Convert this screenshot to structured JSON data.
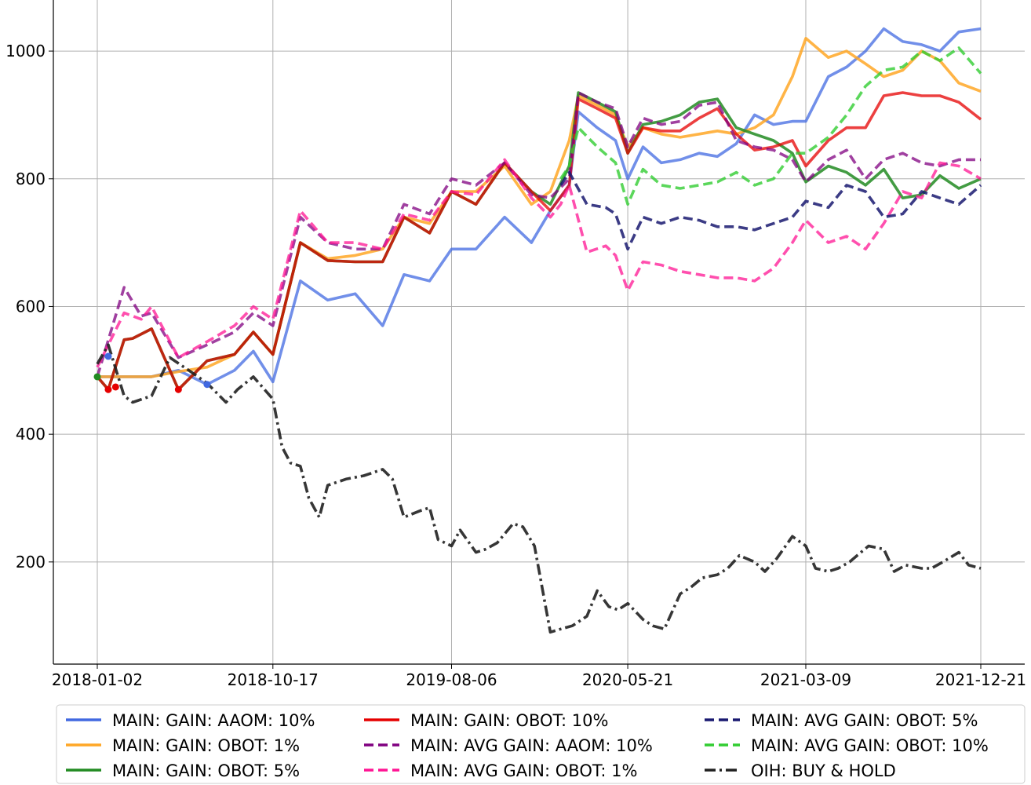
{
  "chart_data": {
    "type": "line",
    "title": "",
    "xlabel": "",
    "ylabel": "",
    "ylim": [
      40,
      1080
    ],
    "yticks": [
      200,
      400,
      600,
      800,
      1000
    ],
    "xticks": [
      "2018-01-02",
      "2018-10-17",
      "2019-08-06",
      "2020-05-21",
      "2021-03-09",
      "2021-12-21"
    ],
    "grid": true,
    "legend_placement": "bottom",
    "series": [
      {
        "name": "MAIN: GAIN: AAOM: 10%",
        "color": "#4169E1",
        "style": "solid",
        "opacity": 0.75,
        "x": [
          "2018-01-02",
          "2018-04-01",
          "2018-05-15",
          "2018-07-01",
          "2018-08-15",
          "2018-09-15",
          "2018-10-17",
          "2018-12-01",
          "2019-01-15",
          "2019-03-01",
          "2019-04-15",
          "2019-05-20",
          "2019-07-01",
          "2019-08-06",
          "2019-09-15",
          "2019-11-01",
          "2019-12-15",
          "2020-01-15",
          "2020-02-15",
          "2020-03-01",
          "2020-04-01",
          "2020-05-01",
          "2020-05-21",
          "2020-06-15",
          "2020-07-15",
          "2020-08-15",
          "2020-09-15",
          "2020-10-15",
          "2020-11-15",
          "2020-12-15",
          "2021-01-15",
          "2021-02-15",
          "2021-03-09",
          "2021-04-15",
          "2021-05-15",
          "2021-06-15",
          "2021-07-15",
          "2021-08-15",
          "2021-09-15",
          "2021-10-15",
          "2021-11-15",
          "2021-12-21"
        ],
        "values": [
          490,
          490,
          500,
          478,
          500,
          530,
          482,
          640,
          610,
          620,
          570,
          650,
          640,
          690,
          690,
          740,
          700,
          750,
          790,
          905,
          880,
          860,
          800,
          850,
          825,
          830,
          840,
          835,
          855,
          900,
          885,
          890,
          890,
          960,
          975,
          1000,
          1035,
          1015,
          1010,
          1000,
          1030,
          1035
        ]
      },
      {
        "name": "MAIN: GAIN: OBOT: 1%",
        "color": "#FFA726",
        "style": "solid",
        "opacity": 0.85,
        "x": [
          "2018-01-02",
          "2018-04-01",
          "2018-05-15",
          "2018-07-01",
          "2018-08-15",
          "2018-09-15",
          "2018-10-17",
          "2018-12-01",
          "2019-01-15",
          "2019-03-01",
          "2019-04-15",
          "2019-05-20",
          "2019-07-01",
          "2019-08-06",
          "2019-09-15",
          "2019-11-01",
          "2019-12-15",
          "2020-01-15",
          "2020-02-15",
          "2020-03-01",
          "2020-04-01",
          "2020-05-01",
          "2020-05-21",
          "2020-06-15",
          "2020-07-15",
          "2020-08-15",
          "2020-09-15",
          "2020-10-15",
          "2020-11-15",
          "2020-12-15",
          "2021-01-15",
          "2021-02-15",
          "2021-03-09",
          "2021-04-15",
          "2021-05-15",
          "2021-06-15",
          "2021-07-15",
          "2021-08-15",
          "2021-09-15",
          "2021-10-15",
          "2021-11-15",
          "2021-12-21"
        ],
        "values": [
          490,
          490,
          498,
          505,
          525,
          560,
          525,
          700,
          675,
          680,
          690,
          740,
          730,
          780,
          780,
          820,
          760,
          780,
          860,
          930,
          915,
          900,
          850,
          880,
          870,
          865,
          870,
          875,
          870,
          880,
          900,
          960,
          1020,
          990,
          1000,
          980,
          960,
          970,
          1000,
          985,
          950,
          937
        ]
      },
      {
        "name": "MAIN: GAIN: OBOT: 5%",
        "color": "#228B22",
        "style": "solid",
        "opacity": 0.85,
        "x": [
          "2018-01-02",
          "2018-01-20",
          "2018-02-15",
          "2018-03-01",
          "2018-04-01",
          "2018-05-15",
          "2018-07-01",
          "2018-08-15",
          "2018-09-15",
          "2018-10-17",
          "2018-12-01",
          "2019-01-15",
          "2019-03-01",
          "2019-04-15",
          "2019-05-20",
          "2019-07-01",
          "2019-08-06",
          "2019-09-15",
          "2019-11-01",
          "2019-12-15",
          "2020-01-15",
          "2020-02-15",
          "2020-03-01",
          "2020-04-01",
          "2020-05-01",
          "2020-05-21",
          "2020-06-15",
          "2020-07-15",
          "2020-08-15",
          "2020-09-15",
          "2020-10-15",
          "2020-11-15",
          "2020-12-15",
          "2021-01-15",
          "2021-02-15",
          "2021-03-09",
          "2021-04-15",
          "2021-05-15",
          "2021-06-15",
          "2021-07-15",
          "2021-08-15",
          "2021-09-15",
          "2021-10-15",
          "2021-11-15",
          "2021-12-21"
        ],
        "values": [
          490,
          470,
          548,
          550,
          565,
          470,
          515,
          525,
          560,
          525,
          700,
          672,
          670,
          670,
          740,
          715,
          780,
          760,
          825,
          780,
          760,
          820,
          935,
          920,
          905,
          840,
          885,
          890,
          900,
          920,
          925,
          880,
          870,
          860,
          840,
          795,
          820,
          810,
          790,
          815,
          770,
          775,
          805,
          785,
          800
        ]
      },
      {
        "name": "MAIN: GAIN: OBOT: 10%",
        "color": "#E50000",
        "style": "solid",
        "opacity": 0.75,
        "x": [
          "2018-01-02",
          "2018-01-20",
          "2018-02-15",
          "2018-03-01",
          "2018-04-01",
          "2018-05-15",
          "2018-07-01",
          "2018-08-15",
          "2018-09-15",
          "2018-10-17",
          "2018-12-01",
          "2019-01-15",
          "2019-03-01",
          "2019-04-15",
          "2019-05-20",
          "2019-07-01",
          "2019-08-06",
          "2019-09-15",
          "2019-11-01",
          "2019-12-15",
          "2020-01-15",
          "2020-02-15",
          "2020-03-01",
          "2020-04-01",
          "2020-05-01",
          "2020-05-21",
          "2020-06-15",
          "2020-07-15",
          "2020-08-15",
          "2020-09-15",
          "2020-10-15",
          "2020-11-15",
          "2020-12-15",
          "2021-01-15",
          "2021-02-15",
          "2021-03-09",
          "2021-04-15",
          "2021-05-15",
          "2021-06-15",
          "2021-07-15",
          "2021-08-15",
          "2021-09-15",
          "2021-10-15",
          "2021-11-15",
          "2021-12-21"
        ],
        "values": [
          490,
          470,
          548,
          550,
          565,
          470,
          515,
          525,
          560,
          525,
          700,
          672,
          670,
          670,
          740,
          715,
          780,
          760,
          825,
          780,
          750,
          790,
          925,
          910,
          895,
          840,
          880,
          875,
          875,
          895,
          910,
          870,
          845,
          850,
          860,
          820,
          860,
          880,
          880,
          930,
          935,
          930,
          930,
          920,
          893
        ]
      },
      {
        "name": "MAIN: AVG GAIN: AAOM: 10%",
        "color": "#800080",
        "style": "dashed",
        "opacity": 0.75,
        "x": [
          "2018-01-02",
          "2018-02-15",
          "2018-03-15",
          "2018-04-01",
          "2018-05-15",
          "2018-07-01",
          "2018-08-15",
          "2018-09-15",
          "2018-10-17",
          "2018-12-01",
          "2019-01-15",
          "2019-03-01",
          "2019-04-15",
          "2019-05-20",
          "2019-07-01",
          "2019-08-06",
          "2019-09-15",
          "2019-11-01",
          "2019-12-15",
          "2020-01-15",
          "2020-02-15",
          "2020-03-01",
          "2020-04-01",
          "2020-05-01",
          "2020-05-21",
          "2020-06-15",
          "2020-07-15",
          "2020-08-15",
          "2020-09-15",
          "2020-10-15",
          "2020-11-15",
          "2020-12-15",
          "2021-01-15",
          "2021-02-15",
          "2021-03-09",
          "2021-04-15",
          "2021-05-15",
          "2021-06-15",
          "2021-07-15",
          "2021-08-15",
          "2021-09-15",
          "2021-10-15",
          "2021-11-15",
          "2021-12-21"
        ],
        "values": [
          490,
          630,
          585,
          590,
          520,
          540,
          560,
          590,
          570,
          740,
          700,
          690,
          690,
          760,
          745,
          800,
          790,
          825,
          775,
          770,
          800,
          935,
          920,
          910,
          850,
          895,
          885,
          890,
          915,
          920,
          860,
          850,
          845,
          830,
          795,
          830,
          845,
          800,
          830,
          840,
          825,
          820,
          830,
          830
        ]
      },
      {
        "name": "MAIN: AVG GAIN: OBOT: 1%",
        "color": "#FF1493",
        "style": "dashed",
        "opacity": 0.75,
        "x": [
          "2018-01-02",
          "2018-02-15",
          "2018-03-15",
          "2018-04-01",
          "2018-05-15",
          "2018-07-01",
          "2018-08-15",
          "2018-09-15",
          "2018-10-17",
          "2018-12-01",
          "2019-01-15",
          "2019-03-01",
          "2019-04-15",
          "2019-05-20",
          "2019-07-01",
          "2019-08-06",
          "2019-09-15",
          "2019-11-01",
          "2019-12-15",
          "2020-01-15",
          "2020-02-01",
          "2020-02-15",
          "2020-03-15",
          "2020-04-15",
          "2020-05-01",
          "2020-05-21",
          "2020-06-15",
          "2020-07-15",
          "2020-08-15",
          "2020-09-15",
          "2020-10-15",
          "2020-11-15",
          "2020-12-15",
          "2021-01-15",
          "2021-02-15",
          "2021-03-09",
          "2021-04-15",
          "2021-05-15",
          "2021-06-15",
          "2021-07-15",
          "2021-08-15",
          "2021-09-15",
          "2021-10-15",
          "2021-11-15",
          "2021-12-21"
        ],
        "values": [
          505,
          590,
          580,
          600,
          520,
          545,
          570,
          600,
          580,
          750,
          700,
          700,
          690,
          745,
          735,
          780,
          775,
          830,
          770,
          740,
          760,
          790,
          685,
          695,
          680,
          625,
          670,
          665,
          655,
          650,
          645,
          645,
          640,
          660,
          700,
          735,
          700,
          710,
          690,
          730,
          780,
          770,
          825,
          820,
          800
        ]
      },
      {
        "name": "MAIN: AVG GAIN: OBOT: 5%",
        "color": "#191970",
        "style": "dashed",
        "opacity": 0.85,
        "x": [
          "2020-02-01",
          "2020-02-15",
          "2020-03-15",
          "2020-04-15",
          "2020-05-01",
          "2020-05-21",
          "2020-06-15",
          "2020-07-15",
          "2020-08-15",
          "2020-09-15",
          "2020-10-15",
          "2020-11-15",
          "2020-12-15",
          "2021-01-15",
          "2021-02-15",
          "2021-03-09",
          "2021-04-15",
          "2021-05-15",
          "2021-06-15",
          "2021-07-15",
          "2021-08-15",
          "2021-09-15",
          "2021-10-15",
          "2021-11-15",
          "2021-12-21"
        ],
        "values": [
          790,
          810,
          760,
          755,
          745,
          690,
          740,
          730,
          740,
          735,
          725,
          725,
          720,
          730,
          740,
          765,
          755,
          790,
          780,
          740,
          745,
          780,
          770,
          760,
          790
        ]
      },
      {
        "name": "MAIN: AVG GAIN: OBOT: 10%",
        "color": "#32CD32",
        "style": "dashed",
        "opacity": 0.8,
        "x": [
          "2020-02-01",
          "2020-02-15",
          "2020-03-01",
          "2020-04-01",
          "2020-05-01",
          "2020-05-21",
          "2020-06-15",
          "2020-07-15",
          "2020-08-15",
          "2020-09-15",
          "2020-10-15",
          "2020-11-15",
          "2020-12-15",
          "2021-01-15",
          "2021-02-15",
          "2021-03-09",
          "2021-04-15",
          "2021-05-15",
          "2021-06-15",
          "2021-07-15",
          "2021-08-15",
          "2021-09-15",
          "2021-10-15",
          "2021-11-15",
          "2021-12-21"
        ],
        "values": [
          800,
          820,
          880,
          850,
          825,
          760,
          815,
          790,
          785,
          790,
          795,
          810,
          790,
          800,
          840,
          840,
          865,
          900,
          945,
          970,
          975,
          1000,
          985,
          1005,
          965
        ]
      },
      {
        "name": "OIH: BUY & HOLD",
        "color": "#202020",
        "style": "dashdot",
        "opacity": 0.9,
        "x": [
          "2018-01-02",
          "2018-01-20",
          "2018-02-15",
          "2018-03-01",
          "2018-04-01",
          "2018-05-01",
          "2018-06-01",
          "2018-07-01",
          "2018-08-01",
          "2018-08-20",
          "2018-09-15",
          "2018-10-17",
          "2018-11-01",
          "2018-11-15",
          "2018-12-01",
          "2018-12-15",
          "2019-01-01",
          "2019-01-15",
          "2019-02-15",
          "2019-03-15",
          "2019-04-15",
          "2019-05-01",
          "2019-05-20",
          "2019-06-15",
          "2019-07-01",
          "2019-07-15",
          "2019-08-06",
          "2019-08-20",
          "2019-09-15",
          "2019-10-01",
          "2019-10-20",
          "2019-11-15",
          "2019-12-01",
          "2019-12-20",
          "2020-01-15",
          "2020-02-01",
          "2020-02-20",
          "2020-03-15",
          "2020-04-01",
          "2020-04-20",
          "2020-05-05",
          "2020-05-21",
          "2020-06-15",
          "2020-07-01",
          "2020-07-20",
          "2020-08-15",
          "2020-09-01",
          "2020-09-20",
          "2020-10-15",
          "2020-11-01",
          "2020-11-20",
          "2020-12-15",
          "2021-01-01",
          "2021-01-20",
          "2021-02-15",
          "2021-03-09",
          "2021-03-25",
          "2021-04-15",
          "2021-05-01",
          "2021-05-20",
          "2021-06-01",
          "2021-06-20",
          "2021-07-15",
          "2021-08-01",
          "2021-08-20",
          "2021-09-15",
          "2021-10-01",
          "2021-10-20",
          "2021-11-15",
          "2021-12-01",
          "2021-12-21"
        ],
        "values": [
          510,
          540,
          460,
          450,
          460,
          520,
          500,
          480,
          450,
          470,
          490,
          455,
          380,
          355,
          350,
          300,
          270,
          320,
          330,
          335,
          345,
          330,
          270,
          280,
          285,
          235,
          225,
          250,
          215,
          220,
          230,
          260,
          255,
          225,
          90,
          95,
          100,
          115,
          155,
          130,
          125,
          135,
          110,
          100,
          95,
          150,
          160,
          175,
          180,
          190,
          210,
          200,
          185,
          205,
          240,
          225,
          190,
          185,
          190,
          200,
          210,
          225,
          220,
          185,
          195,
          190,
          190,
          200,
          215,
          195,
          190
        ]
      }
    ],
    "markers": [
      {
        "x": "2018-01-02",
        "value": 490,
        "color": "#228B22"
      },
      {
        "x": "2018-01-20",
        "value": 522,
        "color": "#4169E1"
      },
      {
        "x": "2018-01-20",
        "value": 470,
        "color": "#E50000"
      },
      {
        "x": "2018-02-01",
        "value": 474,
        "color": "#E50000"
      },
      {
        "x": "2018-05-15",
        "value": 470,
        "color": "#E50000"
      },
      {
        "x": "2018-07-01",
        "value": 478,
        "color": "#4169E1"
      }
    ]
  },
  "legend": {
    "items": [
      {
        "label": "MAIN: GAIN: AAOM: 10%",
        "color": "#4169E1",
        "style": "solid"
      },
      {
        "label": "MAIN: GAIN: OBOT: 1%",
        "color": "#FFA726",
        "style": "solid"
      },
      {
        "label": "MAIN: GAIN: OBOT: 5%",
        "color": "#228B22",
        "style": "solid"
      },
      {
        "label": "MAIN: GAIN: OBOT: 10%",
        "color": "#E50000",
        "style": "solid"
      },
      {
        "label": "MAIN: AVG GAIN: AAOM: 10%",
        "color": "#800080",
        "style": "dashed"
      },
      {
        "label": "MAIN: AVG GAIN: OBOT: 1%",
        "color": "#FF1493",
        "style": "dashed"
      },
      {
        "label": "MAIN: AVG GAIN: OBOT: 5%",
        "color": "#191970",
        "style": "dashed"
      },
      {
        "label": "MAIN: AVG GAIN: OBOT: 10%",
        "color": "#32CD32",
        "style": "dashed"
      },
      {
        "label": "OIH: BUY & HOLD",
        "color": "#202020",
        "style": "dashdot"
      }
    ]
  }
}
